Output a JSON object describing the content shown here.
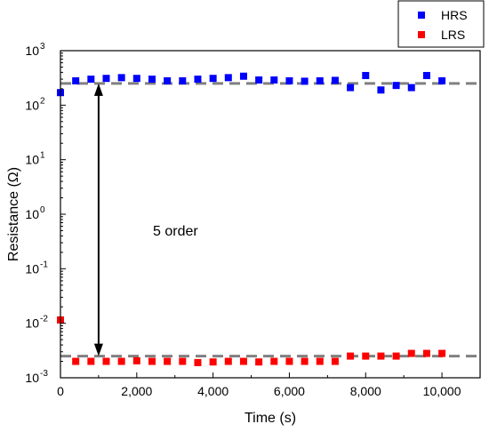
{
  "chart_data": {
    "type": "scatter",
    "xlabel": "Time (s)",
    "ylabel": "Resistance (Ω)",
    "xlim": [
      0,
      11000
    ],
    "ylim": [
      0.001,
      1000
    ],
    "yscale": "log",
    "grid": false,
    "legend_position": "top-right",
    "x_ticks": [
      {
        "value": 0,
        "label": "0"
      },
      {
        "value": 2000,
        "label": "2,000"
      },
      {
        "value": 4000,
        "label": "4,000"
      },
      {
        "value": 6000,
        "label": "6,000"
      },
      {
        "value": 8000,
        "label": "8,000"
      },
      {
        "value": 10000,
        "label": "10,000"
      }
    ],
    "y_ticks": [
      {
        "value": 1000,
        "base": "10",
        "exp": "3"
      },
      {
        "value": 100,
        "base": "10",
        "exp": "2"
      },
      {
        "value": 10,
        "base": "10",
        "exp": "1"
      },
      {
        "value": 1,
        "base": "10",
        "exp": "0"
      },
      {
        "value": 0.1,
        "base": "10",
        "exp": "-1"
      },
      {
        "value": 0.01,
        "base": "10",
        "exp": "-2"
      },
      {
        "value": 0.001,
        "base": "10",
        "exp": "-3"
      }
    ],
    "series": [
      {
        "name": "HRS",
        "color": "#0000ff",
        "marker": "square",
        "x": [
          0,
          400,
          800,
          1200,
          1600,
          2000,
          2400,
          2800,
          3200,
          3600,
          4000,
          4400,
          4800,
          5200,
          5600,
          6000,
          6400,
          6800,
          7200,
          7600,
          8000,
          8400,
          8800,
          9200,
          9600,
          10000
        ],
        "y": [
          170,
          280,
          300,
          310,
          320,
          310,
          300,
          280,
          280,
          300,
          310,
          320,
          340,
          290,
          290,
          280,
          275,
          280,
          285,
          210,
          350,
          190,
          230,
          210,
          350,
          280
        ]
      },
      {
        "name": "LRS",
        "color": "#ff0000",
        "marker": "square",
        "x": [
          0,
          400,
          800,
          1200,
          1600,
          2000,
          2400,
          2800,
          3200,
          3600,
          4000,
          4400,
          4800,
          5200,
          5600,
          6000,
          6400,
          6800,
          7200,
          7600,
          8000,
          8400,
          8800,
          9200,
          9600,
          10000
        ],
        "y": [
          0.0115,
          0.002,
          0.002,
          0.002,
          0.002,
          0.00205,
          0.002,
          0.002,
          0.002,
          0.0019,
          0.00195,
          0.002,
          0.002,
          0.00195,
          0.002,
          0.002,
          0.002,
          0.002,
          0.002,
          0.0025,
          0.0025,
          0.0025,
          0.0025,
          0.0028,
          0.0028,
          0.0028
        ]
      }
    ],
    "reference_lines": [
      {
        "y": 250,
        "color": "#808080",
        "style": "dashed"
      },
      {
        "y": 0.0025,
        "color": "#808080",
        "style": "dashed"
      }
    ],
    "annotations": [
      {
        "text": "5 order",
        "type": "double-arrow",
        "x": 1000,
        "y_from": 250,
        "y_to": 0.0025
      }
    ]
  }
}
